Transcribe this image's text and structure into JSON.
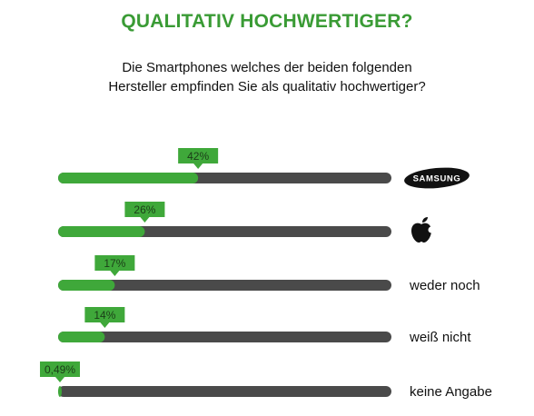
{
  "header": {
    "title": "QUALITATIV HOCHWERTIGER?",
    "subtitle_line1": "Die Smartphones welches der beiden folgenden",
    "subtitle_line2": "Hersteller empfinden Sie als qualitativ hochwertiger?"
  },
  "colors": {
    "accent": "#3a9b35",
    "fill": "#3fa83a",
    "track": "#4a4a4a",
    "text": "#111111"
  },
  "chart_data": {
    "type": "bar",
    "orientation": "horizontal",
    "categories": [
      "SAMSUNG",
      "apple-logo",
      "weder noch",
      "weiß nicht",
      "keine Angabe"
    ],
    "category_kind": [
      "logo",
      "logo",
      "text",
      "text",
      "text"
    ],
    "values": [
      42,
      26,
      17,
      14,
      0.49
    ],
    "value_labels": [
      "42%",
      "26%",
      "17%",
      "14%",
      "0,49%"
    ],
    "unit": "%",
    "xlim": [
      0,
      100
    ],
    "grid": false,
    "legend": "none"
  }
}
